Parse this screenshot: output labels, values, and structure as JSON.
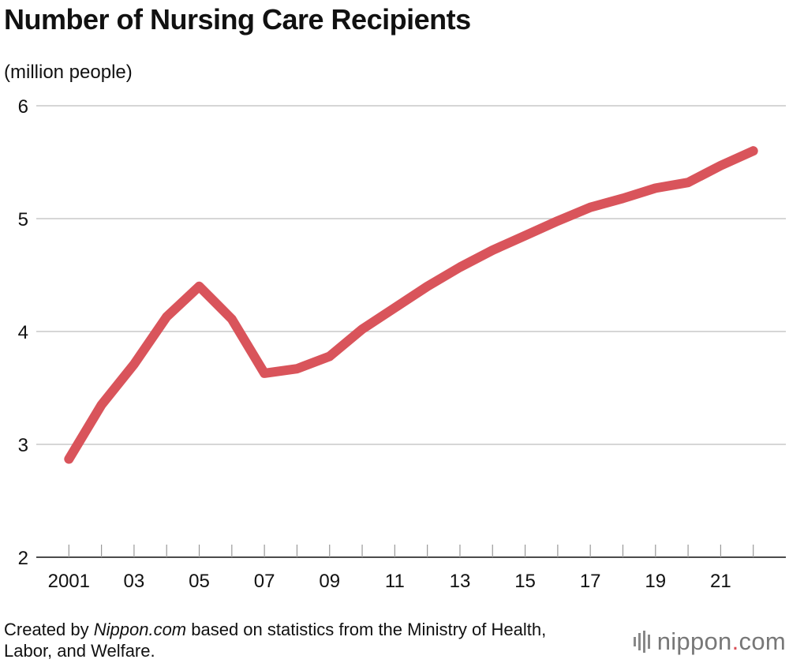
{
  "chart_data": {
    "type": "line",
    "title": "Number of Nursing Care Recipients",
    "ylabel": "(million people)",
    "xlabel": "",
    "ylim": [
      2,
      6
    ],
    "yticks": [
      2,
      3,
      4,
      5,
      6
    ],
    "grid": true,
    "x": [
      2001,
      2002,
      2003,
      2004,
      2005,
      2006,
      2007,
      2008,
      2009,
      2010,
      2011,
      2012,
      2013,
      2014,
      2015,
      2016,
      2017,
      2018,
      2019,
      2020,
      2021,
      2022
    ],
    "xtick_labels": [
      {
        "x": 2001,
        "label": "2001"
      },
      {
        "x": 2003,
        "label": "03"
      },
      {
        "x": 2005,
        "label": "05"
      },
      {
        "x": 2007,
        "label": "07"
      },
      {
        "x": 2009,
        "label": "09"
      },
      {
        "x": 2011,
        "label": "11"
      },
      {
        "x": 2013,
        "label": "13"
      },
      {
        "x": 2015,
        "label": "15"
      },
      {
        "x": 2017,
        "label": "17"
      },
      {
        "x": 2019,
        "label": "19"
      },
      {
        "x": 2021,
        "label": "21"
      }
    ],
    "series": [
      {
        "values": [
          2.87,
          3.35,
          3.71,
          4.13,
          4.4,
          4.11,
          3.63,
          3.67,
          3.78,
          4.02,
          4.21,
          4.4,
          4.57,
          4.72,
          4.85,
          4.98,
          5.1,
          5.18,
          5.27,
          5.32,
          5.47,
          5.6
        ],
        "color": "#d9545b"
      }
    ]
  },
  "footer": {
    "prefix": "Created by ",
    "source_name": "Nippon.com",
    "suffix": " based on statistics from the Ministry of Health, Labor, and Welfare."
  },
  "brand": {
    "name": "nippon",
    "dot": ".",
    "domain": "com",
    "color": "#777777",
    "accent": "#d94f57"
  }
}
